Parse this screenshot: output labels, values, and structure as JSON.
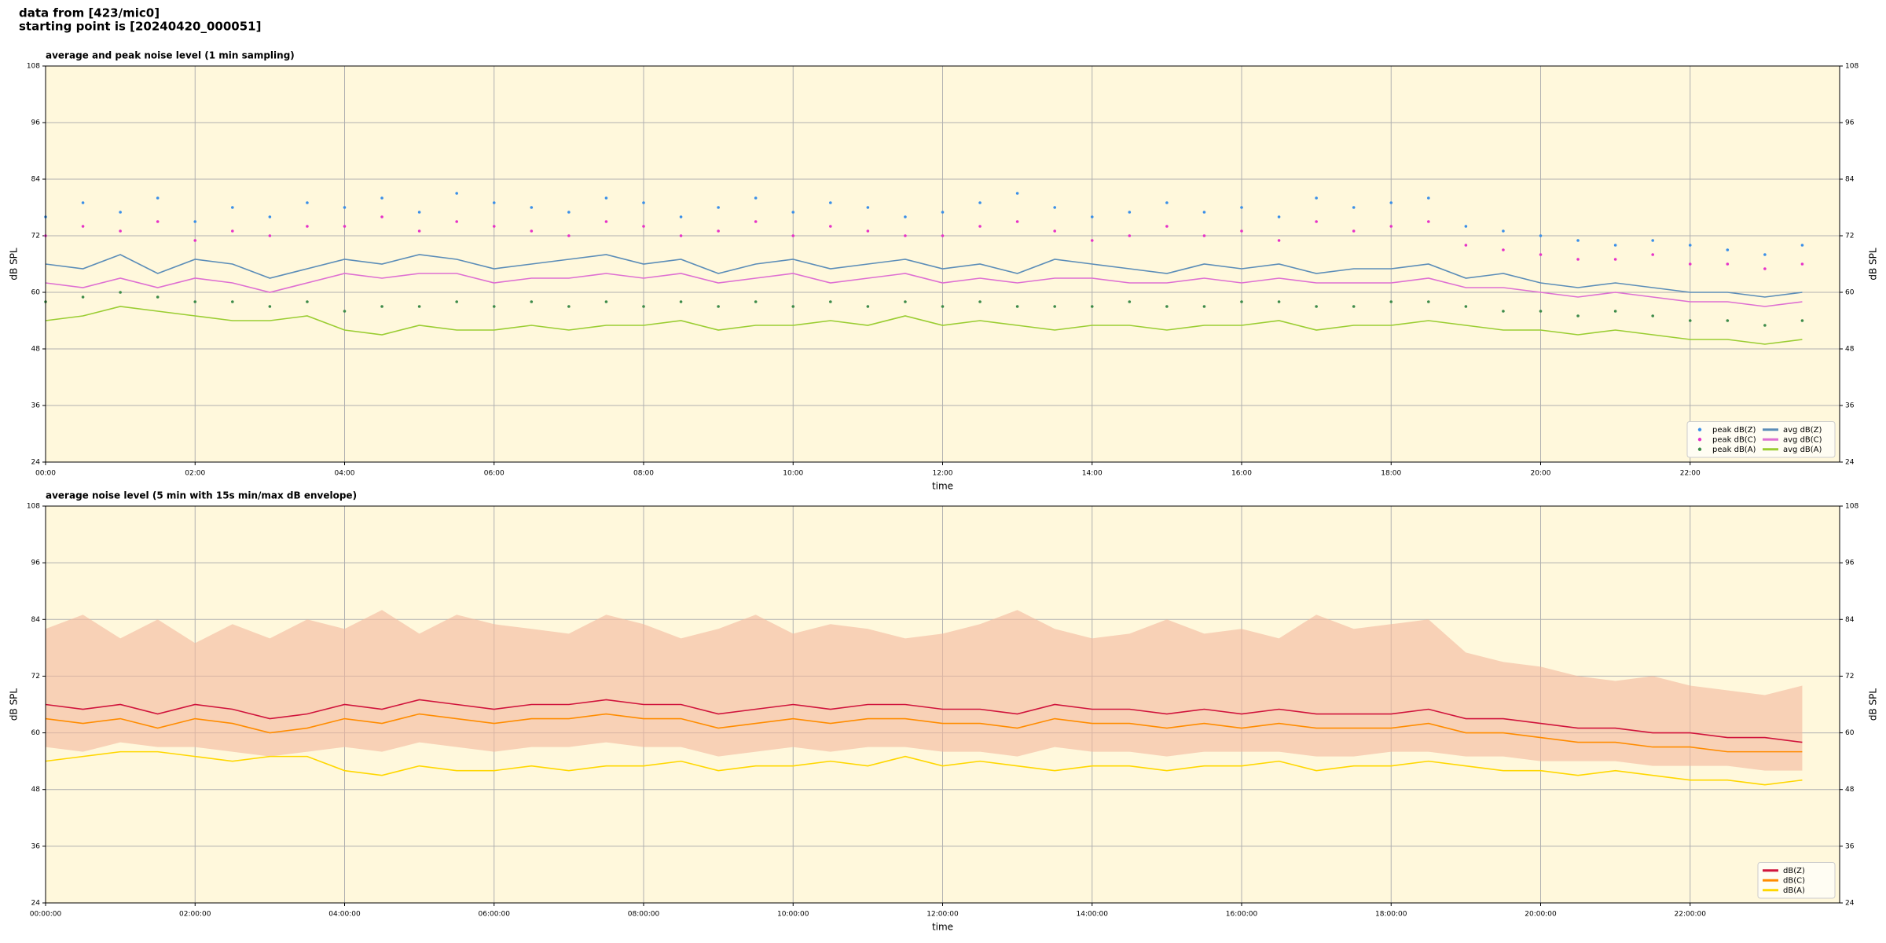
{
  "header": {
    "lines": [
      "data from [423/mic0]",
      "starting point is [20240420_000051]"
    ]
  },
  "chart_data": [
    {
      "type": "line",
      "title": "average and peak noise level (1 min sampling)",
      "xlabel": "time",
      "ylabel": "dB SPL",
      "xlim": [
        0,
        24
      ],
      "xticks": [
        {
          "value": 0,
          "label": "00:00"
        },
        {
          "value": 2,
          "label": "02:00"
        },
        {
          "value": 4,
          "label": "04:00"
        },
        {
          "value": 6,
          "label": "06:00"
        },
        {
          "value": 8,
          "label": "08:00"
        },
        {
          "value": 10,
          "label": "10:00"
        },
        {
          "value": 12,
          "label": "12:00"
        },
        {
          "value": 14,
          "label": "14:00"
        },
        {
          "value": 16,
          "label": "16:00"
        },
        {
          "value": 18,
          "label": "18:00"
        },
        {
          "value": 20,
          "label": "20:00"
        },
        {
          "value": 22,
          "label": "22:00"
        }
      ],
      "ylim": [
        24,
        108
      ],
      "yticks": [
        24,
        36,
        48,
        60,
        72,
        84,
        96,
        108
      ],
      "grid": true,
      "background": "#fff8dc",
      "legend": "lower right",
      "legend_columns": 2,
      "x": [
        0,
        0.5,
        1,
        1.5,
        2,
        2.5,
        3,
        3.5,
        4,
        4.5,
        5,
        5.5,
        6,
        6.5,
        7,
        7.5,
        8,
        8.5,
        9,
        9.5,
        10,
        10.5,
        11,
        11.5,
        12,
        12.5,
        13,
        13.5,
        14,
        14.5,
        15,
        15.5,
        16,
        16.5,
        17,
        17.5,
        18,
        18.5,
        19,
        19.5,
        20,
        20.5,
        21,
        21.5,
        22,
        22.5,
        23,
        23.5
      ],
      "series": [
        {
          "name": "peak dB(Z)",
          "type": "scatter",
          "color": "#3a8fe8",
          "values": [
            76,
            79,
            77,
            80,
            75,
            78,
            76,
            79,
            78,
            80,
            77,
            81,
            79,
            78,
            77,
            80,
            79,
            76,
            78,
            80,
            77,
            79,
            78,
            76,
            77,
            79,
            81,
            78,
            76,
            77,
            79,
            77,
            78,
            76,
            80,
            78,
            79,
            80,
            74,
            73,
            72,
            71,
            70,
            71,
            70,
            69,
            68,
            70
          ]
        },
        {
          "name": "peak dB(C)",
          "type": "scatter",
          "color": "#e632c8",
          "values": [
            72,
            74,
            73,
            75,
            71,
            73,
            72,
            74,
            74,
            76,
            73,
            75,
            74,
            73,
            72,
            75,
            74,
            72,
            73,
            75,
            72,
            74,
            73,
            72,
            72,
            74,
            75,
            73,
            71,
            72,
            74,
            72,
            73,
            71,
            75,
            73,
            74,
            75,
            70,
            69,
            68,
            67,
            67,
            68,
            66,
            66,
            65,
            66
          ]
        },
        {
          "name": "peak dB(A)",
          "type": "scatter",
          "color": "#3d8b4a",
          "values": [
            58,
            59,
            60,
            59,
            58,
            58,
            57,
            58,
            56,
            57,
            57,
            58,
            57,
            58,
            57,
            58,
            57,
            58,
            57,
            58,
            57,
            58,
            57,
            58,
            57,
            58,
            57,
            57,
            57,
            58,
            57,
            57,
            58,
            58,
            57,
            57,
            58,
            58,
            57,
            56,
            56,
            55,
            56,
            55,
            54,
            54,
            53,
            54
          ]
        },
        {
          "name": "avg dB(Z)",
          "type": "line",
          "color": "#5b8db8",
          "values": [
            66,
            65,
            68,
            64,
            67,
            66,
            63,
            65,
            67,
            66,
            68,
            67,
            65,
            66,
            67,
            68,
            66,
            67,
            64,
            66,
            67,
            65,
            66,
            67,
            65,
            66,
            64,
            67,
            66,
            65,
            64,
            66,
            65,
            66,
            64,
            65,
            65,
            66,
            63,
            64,
            62,
            61,
            62,
            61,
            60,
            60,
            59,
            60
          ]
        },
        {
          "name": "avg dB(C)",
          "type": "line",
          "color": "#de6fd2",
          "values": [
            62,
            61,
            63,
            61,
            63,
            62,
            60,
            62,
            64,
            63,
            64,
            64,
            62,
            63,
            63,
            64,
            63,
            64,
            62,
            63,
            64,
            62,
            63,
            64,
            62,
            63,
            62,
            63,
            63,
            62,
            62,
            63,
            62,
            63,
            62,
            62,
            62,
            63,
            61,
            61,
            60,
            59,
            60,
            59,
            58,
            58,
            57,
            58
          ]
        },
        {
          "name": "avg dB(A)",
          "type": "line",
          "color": "#9acd32",
          "values": [
            54,
            55,
            57,
            56,
            55,
            54,
            54,
            55,
            52,
            51,
            53,
            52,
            52,
            53,
            52,
            53,
            53,
            54,
            52,
            53,
            53,
            54,
            53,
            55,
            53,
            54,
            53,
            52,
            53,
            53,
            52,
            53,
            53,
            54,
            52,
            53,
            53,
            54,
            53,
            52,
            52,
            51,
            52,
            51,
            50,
            50,
            49,
            50
          ]
        }
      ]
    },
    {
      "type": "line",
      "title": "average noise level (5 min with 15s min/max dB envelope)",
      "xlabel": "time",
      "ylabel": "dB SPL",
      "xlim": [
        0,
        24
      ],
      "xticks": [
        {
          "value": 0,
          "label": "00:00:00"
        },
        {
          "value": 2,
          "label": "02:00:00"
        },
        {
          "value": 4,
          "label": "04:00:00"
        },
        {
          "value": 6,
          "label": "06:00:00"
        },
        {
          "value": 8,
          "label": "08:00:00"
        },
        {
          "value": 10,
          "label": "10:00:00"
        },
        {
          "value": 12,
          "label": "12:00:00"
        },
        {
          "value": 14,
          "label": "14:00:00"
        },
        {
          "value": 16,
          "label": "16:00:00"
        },
        {
          "value": 18,
          "label": "18:00:00"
        },
        {
          "value": 20,
          "label": "20:00:00"
        },
        {
          "value": 22,
          "label": "22:00:00"
        }
      ],
      "ylim": [
        24,
        108
      ],
      "yticks": [
        24,
        36,
        48,
        60,
        72,
        84,
        96,
        108
      ],
      "grid": true,
      "background": "#fff8dc",
      "legend": "lower right",
      "legend_columns": 1,
      "x": [
        0,
        0.5,
        1,
        1.5,
        2,
        2.5,
        3,
        3.5,
        4,
        4.5,
        5,
        5.5,
        6,
        6.5,
        7,
        7.5,
        8,
        8.5,
        9,
        9.5,
        10,
        10.5,
        11,
        11.5,
        12,
        12.5,
        13,
        13.5,
        14,
        14.5,
        15,
        15.5,
        16,
        16.5,
        17,
        17.5,
        18,
        18.5,
        19,
        19.5,
        20,
        20.5,
        21,
        21.5,
        22,
        22.5,
        23,
        23.5
      ],
      "envelope": {
        "color": "#f4b79c",
        "low": [
          57,
          56,
          58,
          57,
          57,
          56,
          55,
          56,
          57,
          56,
          58,
          57,
          56,
          57,
          57,
          58,
          57,
          57,
          55,
          56,
          57,
          56,
          57,
          57,
          56,
          56,
          55,
          57,
          56,
          56,
          55,
          56,
          56,
          56,
          55,
          55,
          56,
          56,
          55,
          55,
          54,
          54,
          54,
          53,
          53,
          53,
          52,
          52
        ],
        "high": [
          82,
          85,
          80,
          84,
          79,
          83,
          80,
          84,
          82,
          86,
          81,
          85,
          83,
          82,
          81,
          85,
          83,
          80,
          82,
          85,
          81,
          83,
          82,
          80,
          81,
          83,
          86,
          82,
          80,
          81,
          84,
          81,
          82,
          80,
          85,
          82,
          83,
          84,
          77,
          75,
          74,
          72,
          71,
          72,
          70,
          69,
          68,
          70
        ]
      },
      "series": [
        {
          "name": "dB(Z)",
          "type": "line",
          "color": "#d0143c",
          "values": [
            66,
            65,
            66,
            64,
            66,
            65,
            63,
            64,
            66,
            65,
            67,
            66,
            65,
            66,
            66,
            67,
            66,
            66,
            64,
            65,
            66,
            65,
            66,
            66,
            65,
            65,
            64,
            66,
            65,
            65,
            64,
            65,
            64,
            65,
            64,
            64,
            64,
            65,
            63,
            63,
            62,
            61,
            61,
            60,
            60,
            59,
            59,
            58
          ]
        },
        {
          "name": "dB(C)",
          "type": "line",
          "color": "#ff8c00",
          "values": [
            63,
            62,
            63,
            61,
            63,
            62,
            60,
            61,
            63,
            62,
            64,
            63,
            62,
            63,
            63,
            64,
            63,
            63,
            61,
            62,
            63,
            62,
            63,
            63,
            62,
            62,
            61,
            63,
            62,
            62,
            61,
            62,
            61,
            62,
            61,
            61,
            61,
            62,
            60,
            60,
            59,
            58,
            58,
            57,
            57,
            56,
            56,
            56
          ]
        },
        {
          "name": "dB(A)",
          "type": "line",
          "color": "#ffd700",
          "values": [
            54,
            55,
            56,
            56,
            55,
            54,
            55,
            55,
            52,
            51,
            53,
            52,
            52,
            53,
            52,
            53,
            53,
            54,
            52,
            53,
            53,
            54,
            53,
            55,
            53,
            54,
            53,
            52,
            53,
            53,
            52,
            53,
            53,
            54,
            52,
            53,
            53,
            54,
            53,
            52,
            52,
            51,
            52,
            51,
            50,
            50,
            49,
            50
          ]
        }
      ]
    }
  ]
}
